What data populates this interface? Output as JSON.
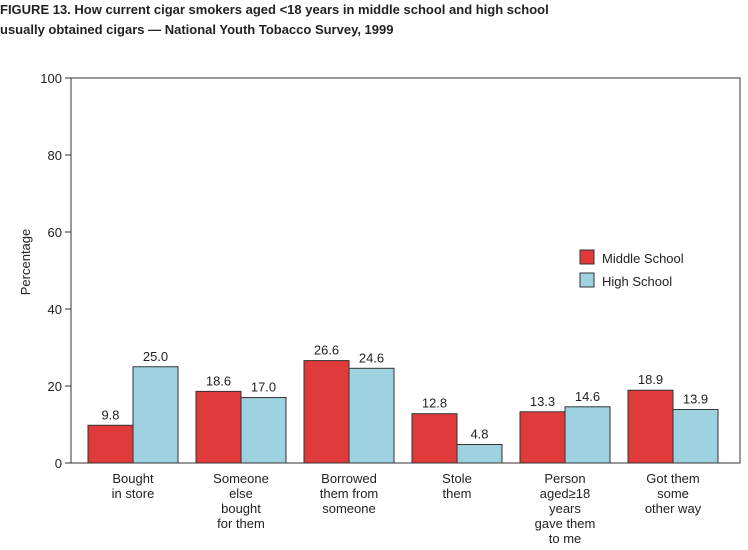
{
  "chart_data": {
    "type": "bar",
    "title": [
      "FIGURE 13. How current cigar smokers aged <18 years in middle school and high school",
      "usually obtained cigars — National Youth Tobacco Survey, 1999"
    ],
    "y_label": "Percentage",
    "categories": [
      [
        "Bought",
        "in store"
      ],
      [
        "Someone",
        "else",
        "bought",
        "for them"
      ],
      [
        "Borrowed",
        "them from",
        "someone"
      ],
      [
        "Stole",
        "them"
      ],
      [
        "Person",
        "aged≥18",
        "years",
        "gave them",
        "to me"
      ],
      [
        "Got them",
        "some",
        "other way"
      ]
    ],
    "series": [
      {
        "name": "Middle School",
        "color": "#e03a3a",
        "values": [
          9.8,
          18.6,
          26.6,
          12.8,
          13.3,
          18.9
        ],
        "value_labels": [
          "9.8",
          "18.6",
          "26.6",
          "12.8",
          "13.3",
          "18.9"
        ]
      },
      {
        "name": "High School",
        "color": "#9fd2e0",
        "values": [
          25,
          17,
          24.6,
          4.8,
          14.6,
          13.9
        ],
        "value_labels": [
          "25.0",
          "17.0",
          "24.6",
          "4.8",
          "14.6",
          "13.9"
        ]
      }
    ],
    "ylim": [
      0,
      100
    ],
    "yticks": [
      0,
      20,
      40,
      60,
      80,
      100
    ],
    "legend": "right"
  }
}
